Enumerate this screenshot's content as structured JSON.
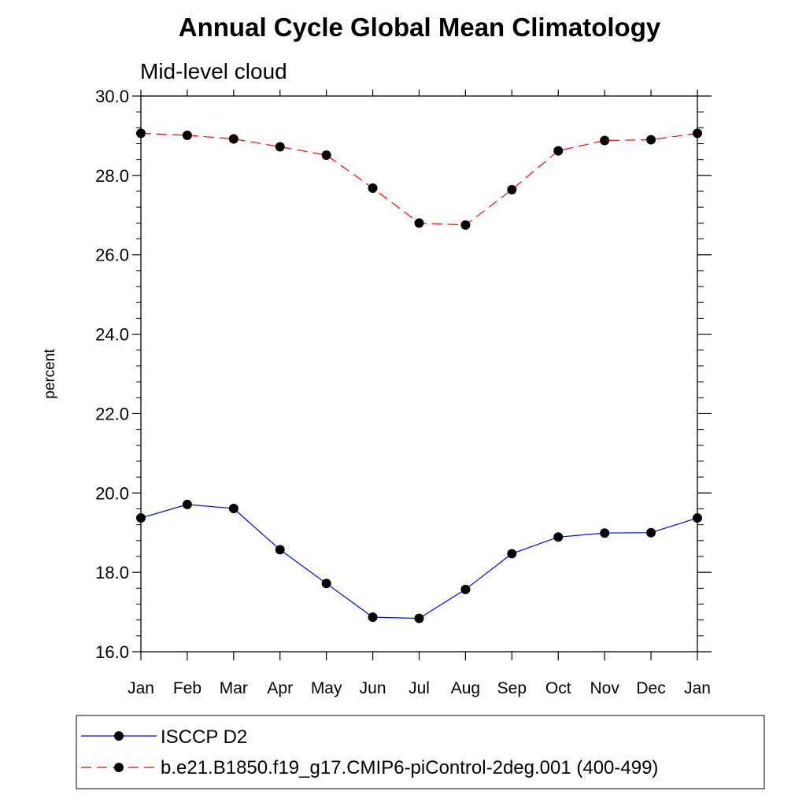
{
  "chart_data": {
    "type": "line",
    "title": "Annual Cycle Global Mean Climatology",
    "subtitle": "Mid-level cloud",
    "xlabel": "",
    "ylabel": "percent",
    "ylim": [
      16.0,
      30.0
    ],
    "y_ticks": [
      "16.0",
      "18.0",
      "20.0",
      "22.0",
      "24.0",
      "26.0",
      "28.0",
      "30.0"
    ],
    "y_tick_values": [
      16,
      18,
      20,
      22,
      24,
      26,
      28,
      30
    ],
    "categories": [
      "Jan",
      "Feb",
      "Mar",
      "Apr",
      "May",
      "Jun",
      "Jul",
      "Aug",
      "Sep",
      "Oct",
      "Nov",
      "Dec",
      "Jan"
    ],
    "grid": false,
    "legend_position": "bottom",
    "series": [
      {
        "name": "ISCCP D2",
        "color": "#0000ff",
        "line_style": "solid",
        "marker": "filled-circle",
        "values": [
          19.37,
          19.71,
          19.61,
          18.57,
          17.72,
          16.87,
          16.84,
          17.57,
          18.47,
          18.89,
          18.99,
          19.0,
          19.37
        ]
      },
      {
        "name": "b.e21.B1850.f19_g17.CMIP6-piControl-2deg.001 (400-499)",
        "color": "#ff0000",
        "line_style": "dashed",
        "marker": "filled-circle",
        "values": [
          29.06,
          29.01,
          28.92,
          28.72,
          28.51,
          27.68,
          26.8,
          26.75,
          27.64,
          28.62,
          28.88,
          28.9,
          29.06
        ]
      }
    ]
  }
}
